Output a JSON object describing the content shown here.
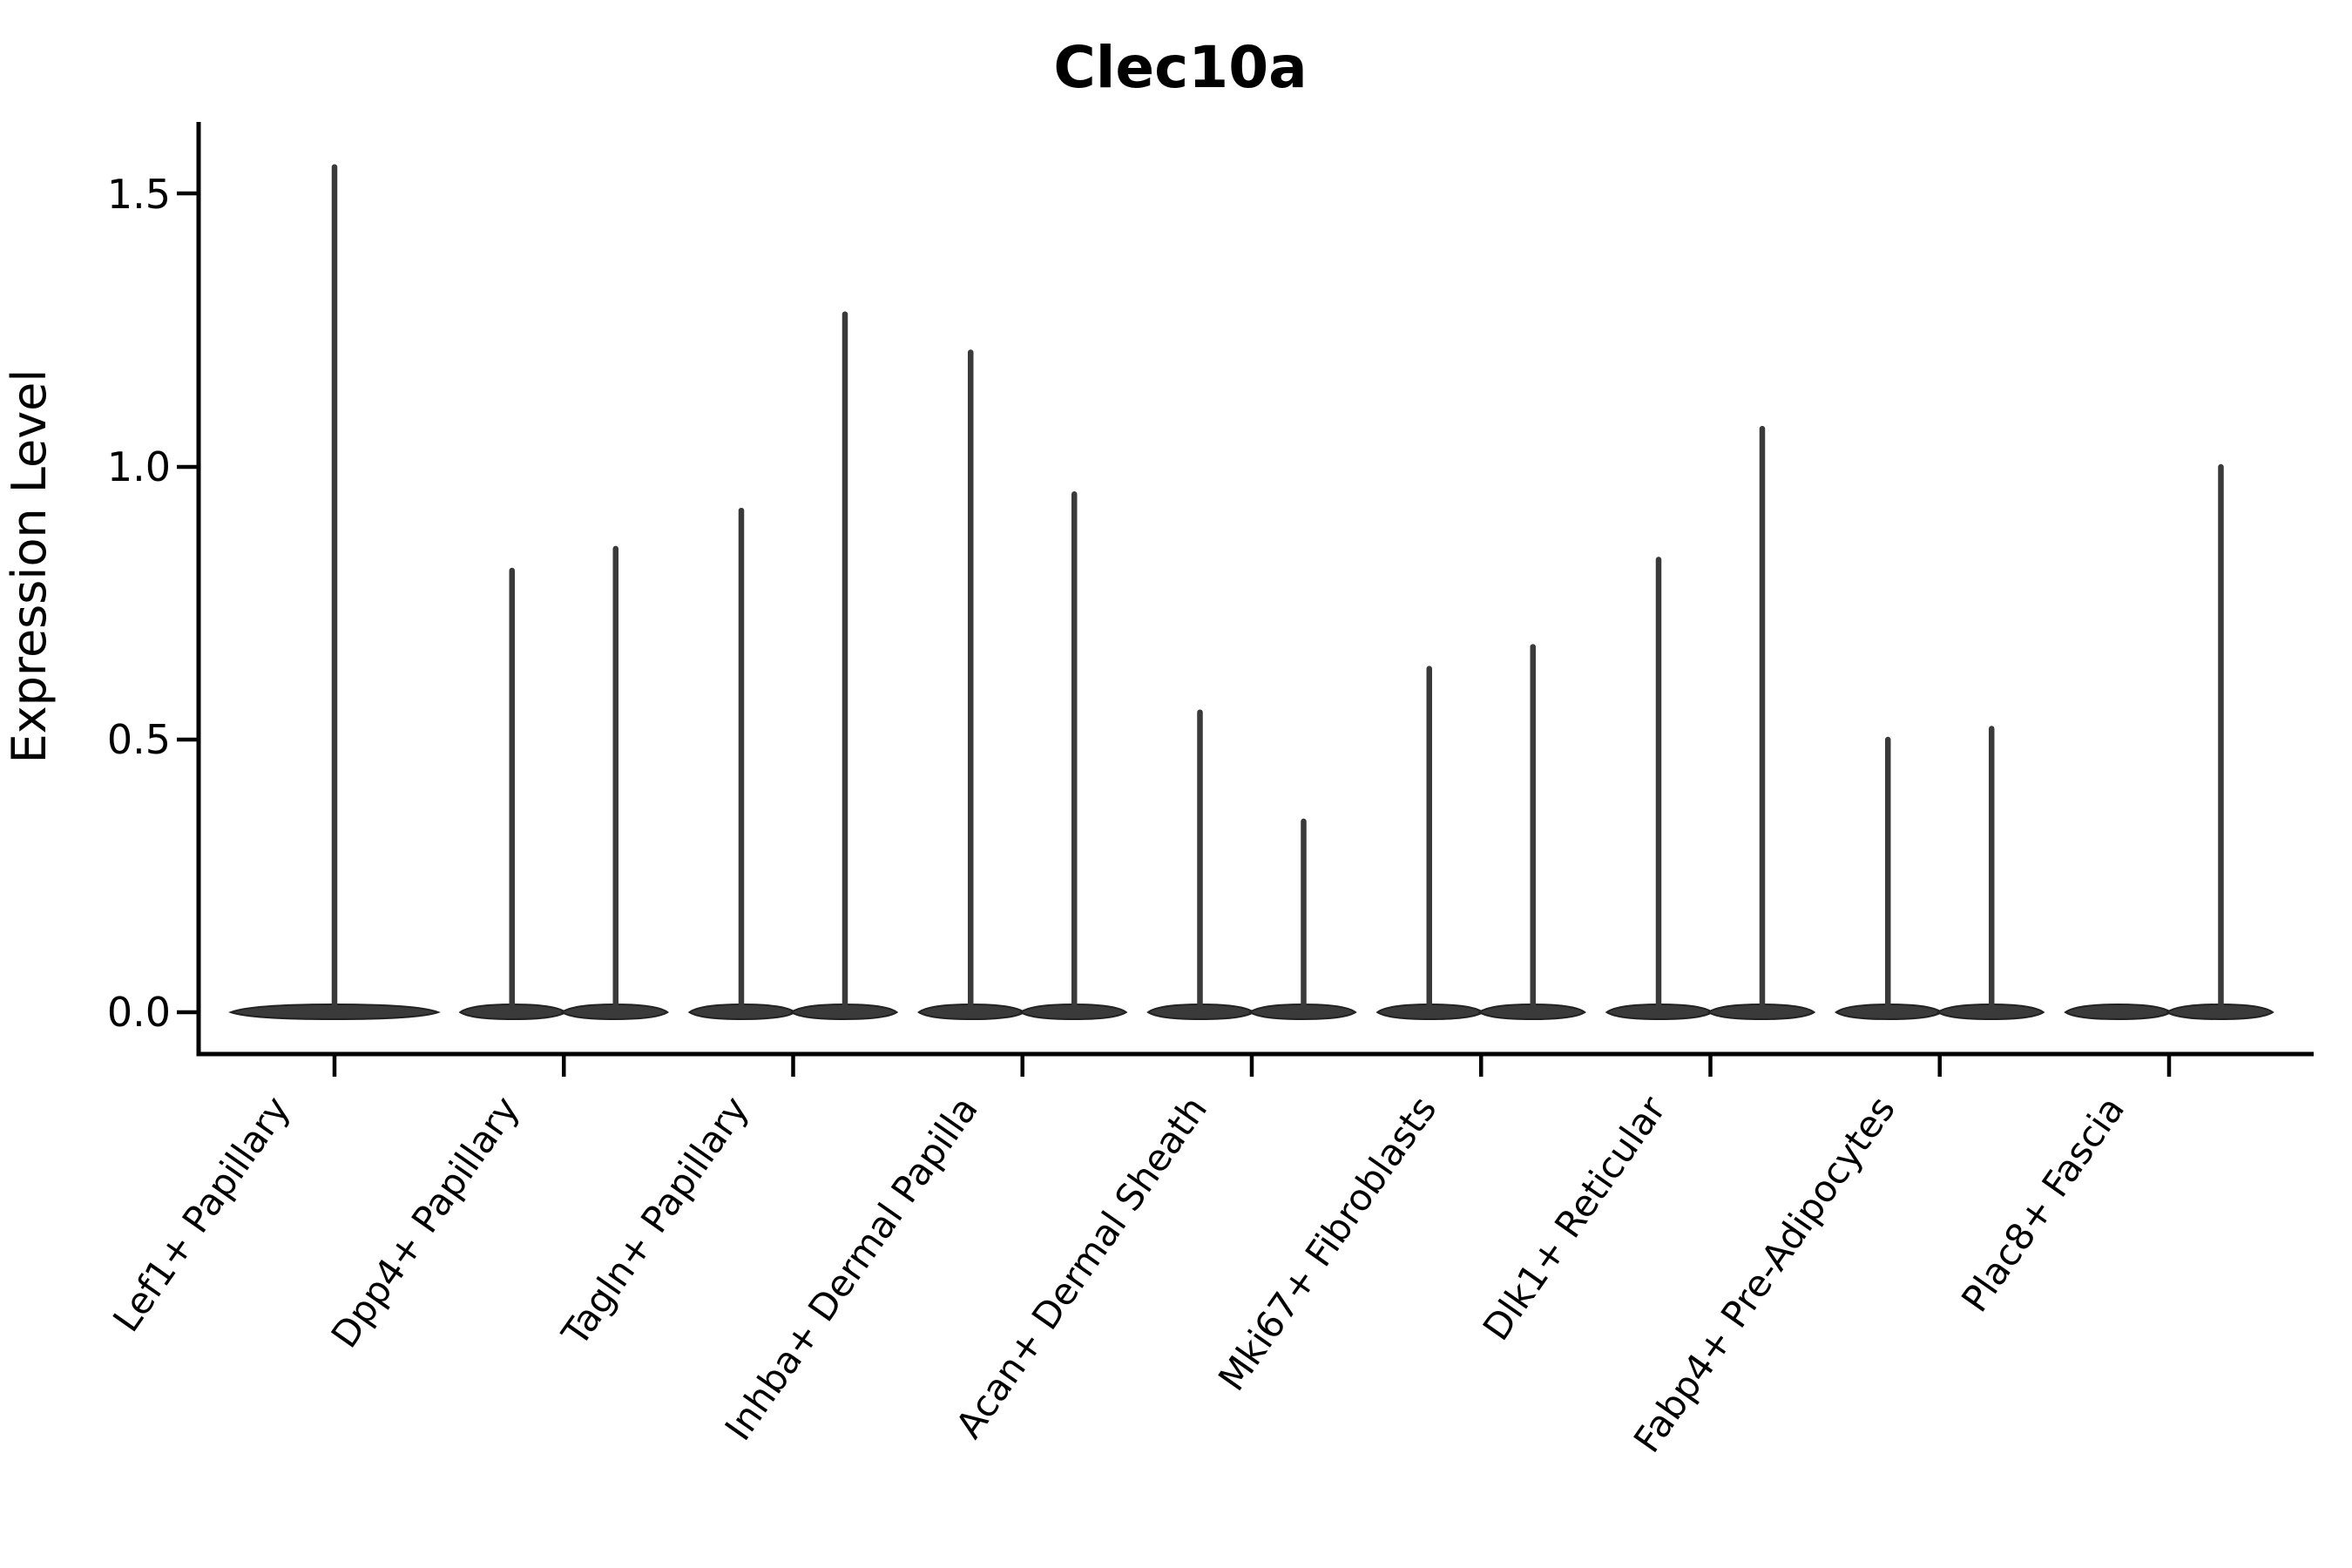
{
  "title": "Clec10a",
  "axes": {
    "ylabel": "Expression Level",
    "ytick_labels": [
      "0.0",
      "0.5",
      "1.0",
      "1.5"
    ]
  },
  "chart_data": {
    "type": "violin",
    "title": "Clec10a",
    "xlabel": "",
    "ylabel": "Expression Level",
    "yticks": [
      0.0,
      0.5,
      1.0,
      1.5
    ],
    "ylim": [
      -0.08,
      1.63
    ],
    "grid": false,
    "legend_position": "none",
    "categories": [
      "Lef1+ Papillary",
      "Dpp4+ Papillary",
      "Tagln+ Papillary",
      "Inhba+ Dermal Papilla",
      "Acan+ Dermal Sheath",
      "Mki67+ Fibroblasts",
      "Dlk1+ Reticular",
      "Fabp4+ Pre-Adipocytes",
      "Plac8+ Fascia"
    ],
    "violins": [
      {
        "category": "Lef1+ Papillary",
        "slot": "full",
        "max_expression": 1.55
      },
      {
        "category": "Dpp4+ Papillary",
        "slot": "left",
        "max_expression": 0.81
      },
      {
        "category": "Dpp4+ Papillary",
        "slot": "right",
        "max_expression": 0.85
      },
      {
        "category": "Tagln+ Papillary",
        "slot": "left",
        "max_expression": 0.92
      },
      {
        "category": "Tagln+ Papillary",
        "slot": "right",
        "max_expression": 1.28
      },
      {
        "category": "Inhba+ Dermal Papilla",
        "slot": "left",
        "max_expression": 1.21
      },
      {
        "category": "Inhba+ Dermal Papilla",
        "slot": "right",
        "max_expression": 0.95
      },
      {
        "category": "Acan+ Dermal Sheath",
        "slot": "left",
        "max_expression": 0.55
      },
      {
        "category": "Acan+ Dermal Sheath",
        "slot": "right",
        "max_expression": 0.35
      },
      {
        "category": "Mki67+ Fibroblasts",
        "slot": "left",
        "max_expression": 0.63
      },
      {
        "category": "Mki67+ Fibroblasts",
        "slot": "right",
        "max_expression": 0.67
      },
      {
        "category": "Dlk1+ Reticular",
        "slot": "left",
        "max_expression": 0.83
      },
      {
        "category": "Dlk1+ Reticular",
        "slot": "right",
        "max_expression": 1.07
      },
      {
        "category": "Fabp4+ Pre-Adipocytes",
        "slot": "left",
        "max_expression": 0.5
      },
      {
        "category": "Fabp4+ Pre-Adipocytes",
        "slot": "right",
        "max_expression": 0.52
      },
      {
        "category": "Plac8+ Fascia",
        "slot": "left",
        "max_expression": 0.0
      },
      {
        "category": "Plac8+ Fascia",
        "slot": "right",
        "max_expression": 1.0
      }
    ],
    "colors": {
      "violin_fill": "#3a3a3a",
      "violin_stroke": "#222222",
      "axis": "#000000",
      "background": "#ffffff"
    }
  }
}
